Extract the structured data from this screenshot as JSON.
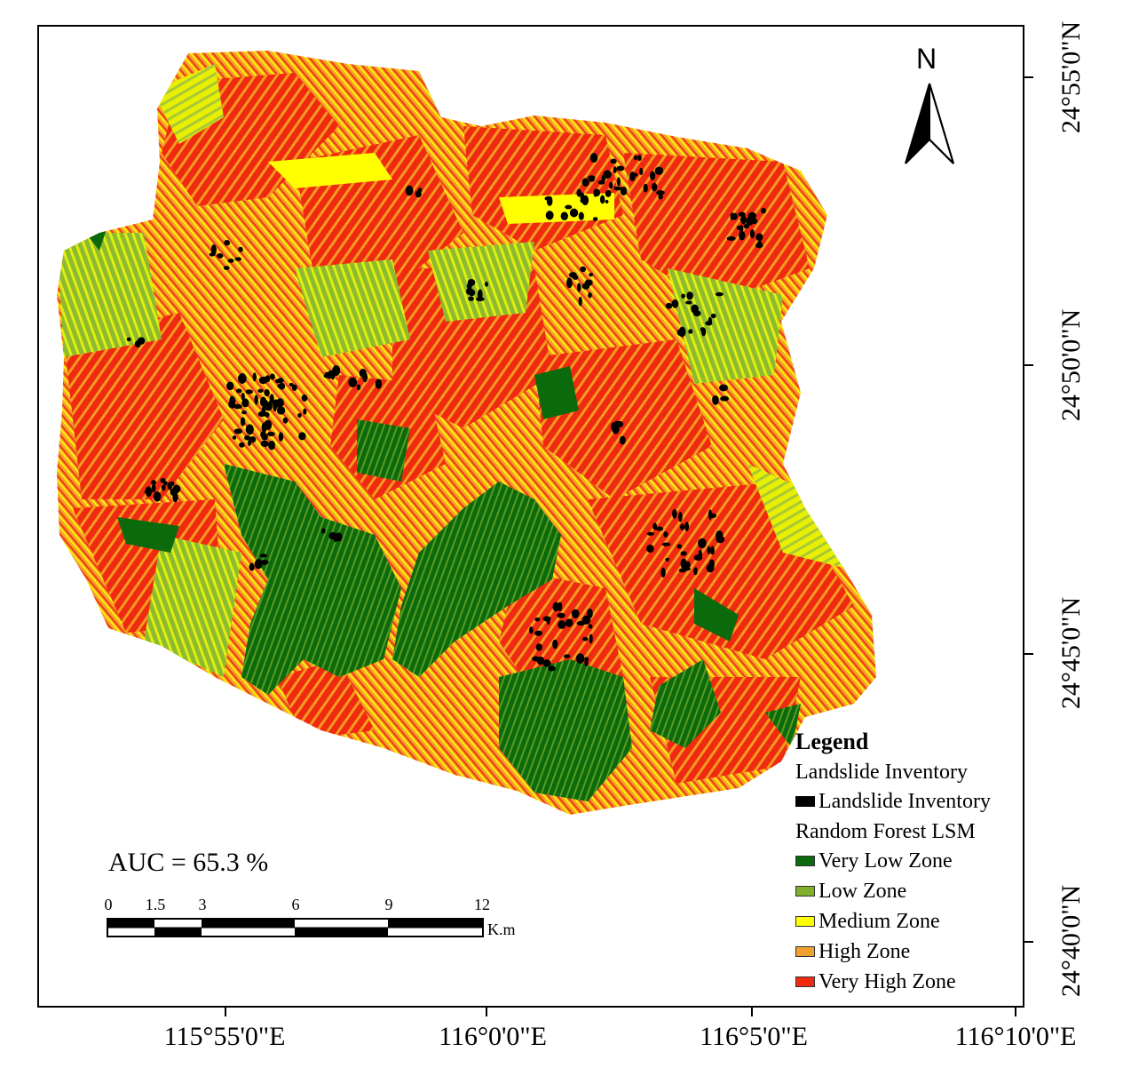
{
  "colors": {
    "very_low": "#0b6a0c",
    "low": "#7fb02c",
    "medium": "#ffff00",
    "high": "#f0a030",
    "very_high": "#ef2a10",
    "landslide": "#000000"
  },
  "north_label": "N",
  "auc_text": "AUC = 65.3 %",
  "scale_bar": {
    "ticks": [
      "0",
      "1.5",
      "3",
      "6",
      "9",
      "12"
    ],
    "unit": "K.m"
  },
  "axes": {
    "longitude": [
      "115°55'0\"E",
      "116°0'0\"E",
      "116°5'0\"E",
      "116°10'0\"E"
    ],
    "latitude": [
      "24°55'0\"N",
      "24°50'0\"N",
      "24°45'0\"N",
      "24°40'0\"N"
    ]
  },
  "legend": {
    "title": "Legend",
    "group1": "Landslide Inventory",
    "landslide_item": "Landslide Inventory",
    "group2": "Random Forest LSM",
    "items": [
      "Very Low Zone",
      "Low Zone",
      "Medium Zone",
      "High Zone",
      "Very High Zone"
    ]
  }
}
